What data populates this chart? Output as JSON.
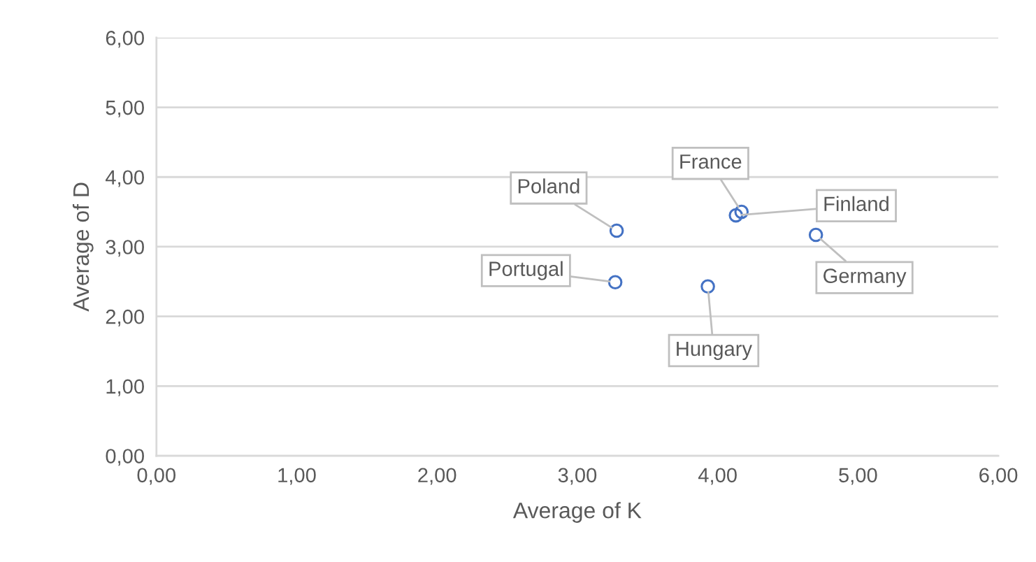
{
  "chart_data": {
    "type": "scatter",
    "xlabel": "Average of K",
    "ylabel": "Average of D",
    "series": [
      {
        "color": "#4472c4",
        "x": [
          3.28,
          3.27,
          3.93,
          4.17,
          4.13,
          4.7
        ],
        "values": [
          3.23,
          2.49,
          2.43,
          3.5,
          3.45,
          3.17
        ]
      }
    ],
    "marker": "circle",
    "annotations": [
      {
        "text": "Poland",
        "x": 3.28,
        "y": 3.23
      },
      {
        "text": "Portugal",
        "x": 3.27,
        "y": 2.49
      },
      {
        "text": "Hungary",
        "x": 3.93,
        "y": 2.43
      },
      {
        "text": "France",
        "x": 4.17,
        "y": 3.5
      },
      {
        "text": "Finland",
        "x": 4.13,
        "y": 3.45
      },
      {
        "text": "Germany",
        "x": 4.7,
        "y": 3.17
      }
    ],
    "xlim": [
      0,
      6
    ],
    "ylim": [
      0,
      6
    ],
    "xticks": [
      {
        "value": 0,
        "label": "0,00"
      },
      {
        "value": 1,
        "label": "1,00"
      },
      {
        "value": 2,
        "label": "2,00"
      },
      {
        "value": 3,
        "label": "3,00"
      },
      {
        "value": 4,
        "label": "4,00"
      },
      {
        "value": 5,
        "label": "5,00"
      },
      {
        "value": 6,
        "label": "6,00"
      }
    ],
    "yticks": [
      {
        "value": 0,
        "label": "0,00"
      },
      {
        "value": 1,
        "label": "1,00"
      },
      {
        "value": 2,
        "label": "2,00"
      },
      {
        "value": 3,
        "label": "3,00"
      },
      {
        "value": 4,
        "label": "4,00"
      },
      {
        "value": 5,
        "label": "5,00"
      },
      {
        "value": 6,
        "label": "6,00"
      }
    ],
    "grid": "y"
  }
}
